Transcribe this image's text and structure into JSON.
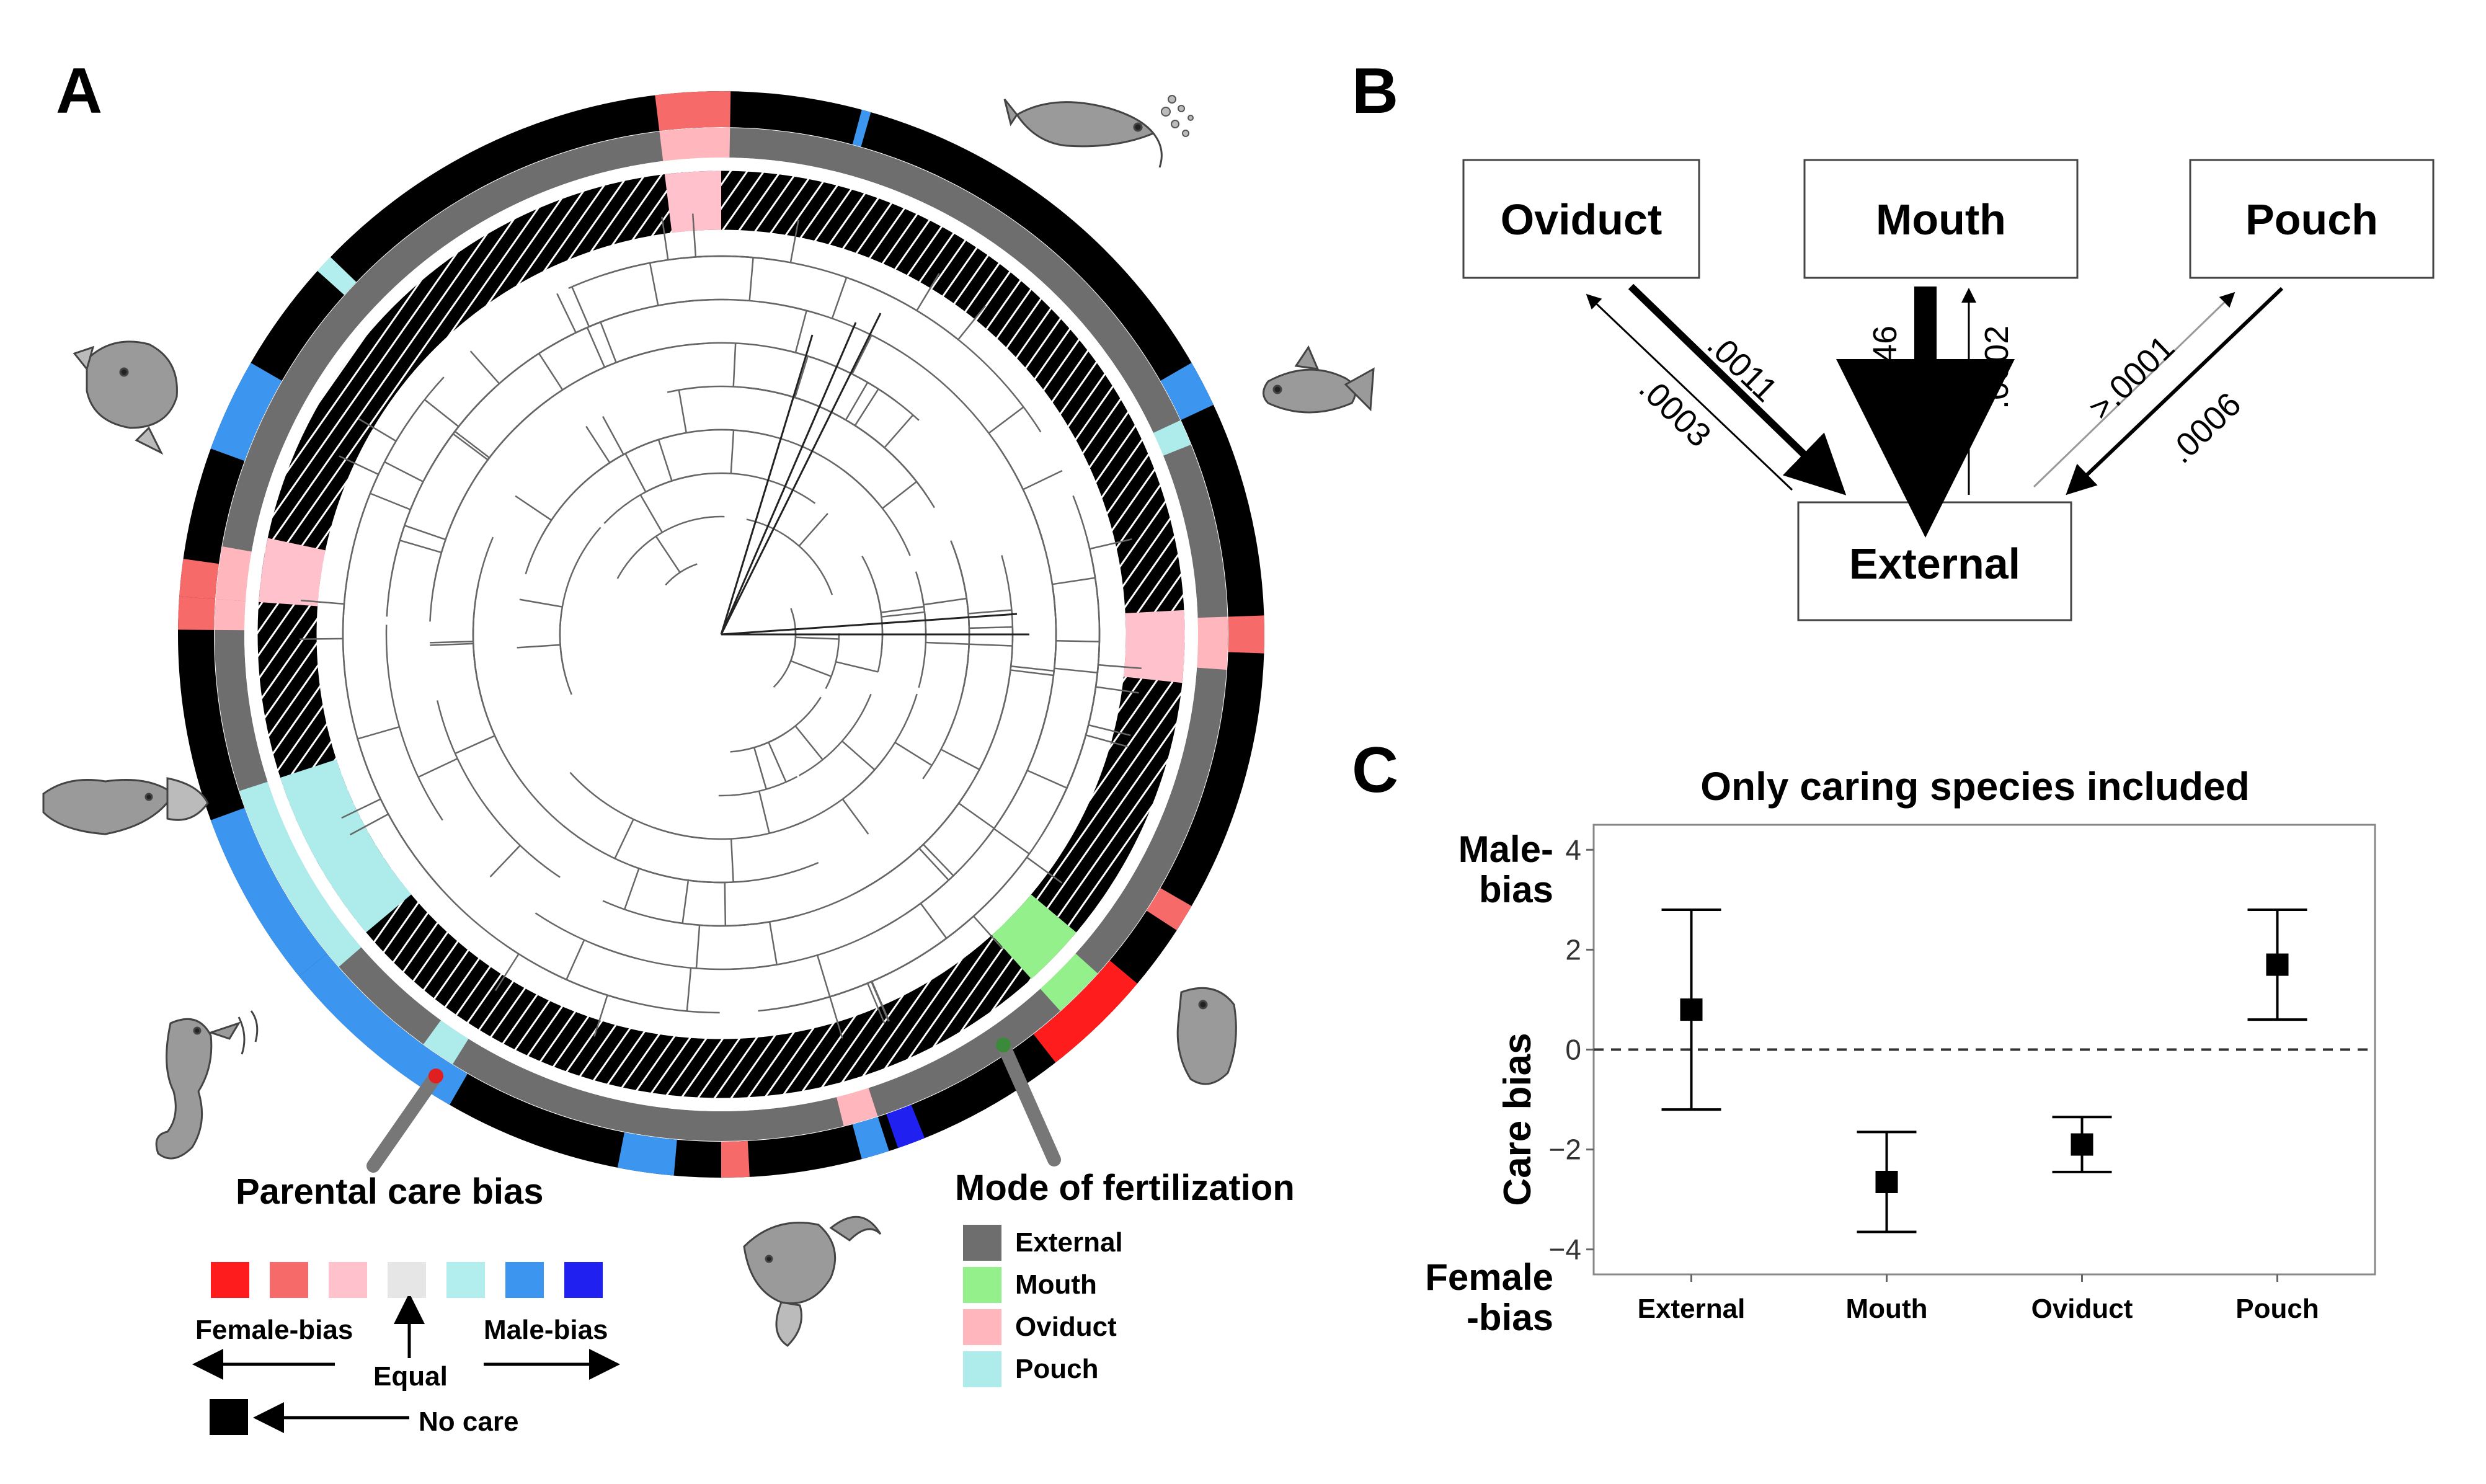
{
  "panels": {
    "a": {
      "letter": "A"
    },
    "b": {
      "letter": "B"
    },
    "c": {
      "letter": "C"
    }
  },
  "panel_a": {
    "legend_care_title": "Parental care bias",
    "legend_care_swatches": [
      "#ff1c1c",
      "#f76a6a",
      "#ffc2cc",
      "#e6e6e6",
      "#b2eeee",
      "#3c96f0",
      "#2020f0"
    ],
    "female_bias_label": "Female-bias",
    "male_bias_label": "Male-bias",
    "equal_label": "Equal",
    "no_care_label": "No care",
    "no_care_color": "#000000",
    "legend_fert_title": "Mode of fertilization",
    "fert_modes": [
      {
        "label": "External",
        "color": "#6e6e6e"
      },
      {
        "label": "Mouth",
        "color": "#93f08a"
      },
      {
        "label": "Oviduct",
        "color": "#ffb6bd"
      },
      {
        "label": "Pouch",
        "color": "#aeecec"
      }
    ]
  },
  "panel_b": {
    "boxes": {
      "oviduct": "Oviduct",
      "mouth": "Mouth",
      "pouch": "Pouch",
      "external": "External"
    },
    "rates": {
      "oviduct_to_external": ".0011",
      "external_to_oviduct": ".0003",
      "mouth_to_external": ".0046",
      "external_to_mouth": ".0002",
      "external_to_pouch": ">.0001",
      "pouch_to_external": ".0006"
    }
  },
  "chart_data": {
    "type": "scatter",
    "title": "Only caring species included",
    "ylabel": "Care bias",
    "ylabel_top": "Male-bias",
    "ylabel_bottom": "Female-bias",
    "ylabel_top_lines": [
      "Male-",
      "bias"
    ],
    "ylabel_bottom_lines": [
      "Female",
      "-bias"
    ],
    "categories": [
      "External",
      "Mouth",
      "Oviduct",
      "Pouch"
    ],
    "values": [
      0.8,
      -2.65,
      -1.9,
      1.7
    ],
    "ci_low": [
      -1.2,
      -3.65,
      -2.45,
      0.6
    ],
    "ci_high": [
      2.8,
      -1.65,
      -1.35,
      2.8
    ],
    "ylim": [
      -4.5,
      4.5
    ],
    "yticks": [
      -4,
      -2,
      0,
      2,
      4
    ],
    "reference_line": 0,
    "grid": false,
    "marker": "square"
  }
}
